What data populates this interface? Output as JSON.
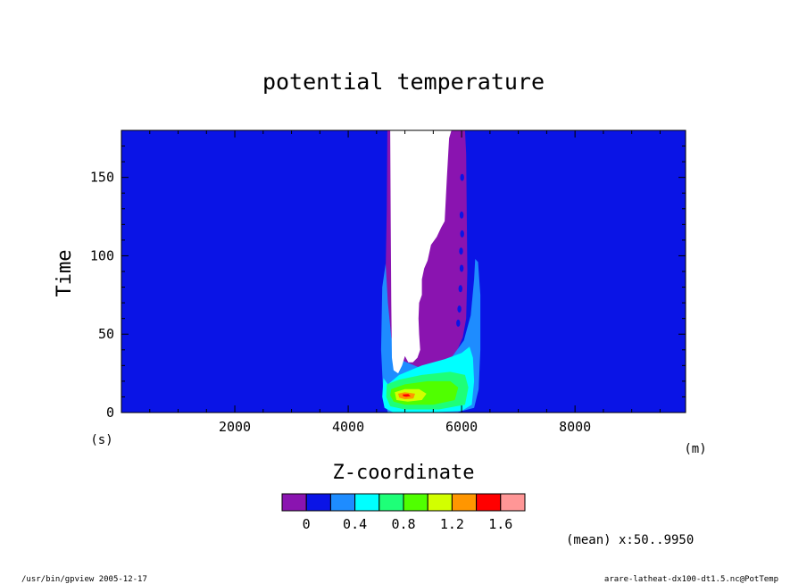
{
  "chart_data": {
    "type": "heatmap",
    "title": "potential temperature",
    "xlabel": "Z-coordinate",
    "ylabel": "Time",
    "x_unit": "(m)",
    "y_unit": "(s)",
    "xlim": [
      0,
      9950
    ],
    "ylim": [
      0,
      180
    ],
    "x_ticks": [
      2000,
      4000,
      6000,
      8000
    ],
    "y_ticks": [
      0,
      50,
      100,
      150
    ],
    "note": "(mean) x:50..9950",
    "colorbar": {
      "levels": [
        -0.4,
        -0.2,
        0,
        0.2,
        0.4,
        0.6,
        0.8,
        1.0,
        1.2,
        1.4,
        1.6,
        1.8
      ],
      "tick_values": [
        "0",
        "0.4",
        "0.8",
        "1.2",
        "1.6"
      ],
      "colors": [
        "#8a14b0",
        "#0a14e6",
        "#1e8cff",
        "#00ffff",
        "#1eff78",
        "#50ff00",
        "#d2ff00",
        "#ff9600",
        "#ff0000",
        "#ff9696"
      ]
    },
    "background_color": "#0a14e6",
    "regions": [
      {
        "name": "purple-plume",
        "color": "#8a14b0",
        "points": [
          [
            4700,
            180
          ],
          [
            6060,
            180
          ],
          [
            6080,
            165
          ],
          [
            6100,
            90
          ],
          [
            6080,
            60
          ],
          [
            6020,
            48
          ],
          [
            5900,
            38
          ],
          [
            5700,
            28
          ],
          [
            5300,
            24
          ],
          [
            4900,
            25
          ],
          [
            4760,
            28
          ],
          [
            4680,
            45
          ],
          [
            4660,
            90
          ],
          [
            4680,
            130
          ],
          [
            4690,
            180
          ]
        ]
      },
      {
        "name": "light-blue-zone",
        "color": "#1e8cff",
        "points": [
          [
            4660,
            95
          ],
          [
            4700,
            70
          ],
          [
            4760,
            48
          ],
          [
            4900,
            34
          ],
          [
            5300,
            28
          ],
          [
            5800,
            34
          ],
          [
            6040,
            46
          ],
          [
            6160,
            62
          ],
          [
            6220,
            85
          ],
          [
            6240,
            98
          ],
          [
            6290,
            96
          ],
          [
            6330,
            75
          ],
          [
            6330,
            40
          ],
          [
            6300,
            15
          ],
          [
            6220,
            3
          ],
          [
            5900,
            0
          ],
          [
            5200,
            0
          ],
          [
            4700,
            0
          ],
          [
            4620,
            10
          ],
          [
            4580,
            40
          ],
          [
            4600,
            80
          ]
        ]
      },
      {
        "name": "cyan-zone",
        "color": "#00ffff",
        "points": [
          [
            4620,
            22
          ],
          [
            4700,
            18
          ],
          [
            4900,
            24
          ],
          [
            5300,
            30
          ],
          [
            5700,
            34
          ],
          [
            6000,
            38
          ],
          [
            6140,
            42
          ],
          [
            6200,
            35
          ],
          [
            6220,
            20
          ],
          [
            6180,
            5
          ],
          [
            6000,
            1
          ],
          [
            5400,
            0
          ],
          [
            4800,
            0
          ],
          [
            4640,
            3
          ],
          [
            4600,
            10
          ]
        ]
      },
      {
        "name": "green-zone",
        "color": "#1eff78",
        "points": [
          [
            4680,
            18
          ],
          [
            4900,
            21
          ],
          [
            5300,
            24
          ],
          [
            5800,
            26
          ],
          [
            6060,
            24
          ],
          [
            6120,
            16
          ],
          [
            6060,
            5
          ],
          [
            5600,
            2
          ],
          [
            5000,
            2
          ],
          [
            4740,
            4
          ],
          [
            4670,
            10
          ]
        ]
      },
      {
        "name": "lime-zone",
        "color": "#50ff00",
        "points": [
          [
            4760,
            15
          ],
          [
            5000,
            18
          ],
          [
            5400,
            20
          ],
          [
            5800,
            20
          ],
          [
            5940,
            16
          ],
          [
            5880,
            8
          ],
          [
            5500,
            5
          ],
          [
            5000,
            5
          ],
          [
            4800,
            7
          ],
          [
            4740,
            11
          ]
        ]
      },
      {
        "name": "yellow-zone",
        "color": "#d2ff00",
        "points": [
          [
            4820,
            13
          ],
          [
            5000,
            15
          ],
          [
            5250,
            15
          ],
          [
            5380,
            12
          ],
          [
            5300,
            8
          ],
          [
            5050,
            7
          ],
          [
            4850,
            8
          ]
        ]
      },
      {
        "name": "orange-zone",
        "color": "#ff9600",
        "points": [
          [
            4880,
            12
          ],
          [
            5000,
            13
          ],
          [
            5180,
            12
          ],
          [
            5150,
            9
          ],
          [
            5000,
            8.5
          ],
          [
            4900,
            9.5
          ]
        ]
      },
      {
        "name": "red-zone",
        "color": "#ff0000",
        "points": [
          [
            4960,
            11.5
          ],
          [
            5060,
            11.8
          ],
          [
            5100,
            10.5
          ],
          [
            5020,
            10
          ],
          [
            4970,
            10.5
          ]
        ]
      },
      {
        "name": "white-core",
        "color": "#ffffff",
        "points": [
          [
            4740,
            180
          ],
          [
            5820,
            180
          ],
          [
            5780,
            175
          ],
          [
            5740,
            150
          ],
          [
            5700,
            122
          ],
          [
            5640,
            118
          ],
          [
            5560,
            112
          ],
          [
            5460,
            107
          ],
          [
            5400,
            97
          ],
          [
            5340,
            92
          ],
          [
            5300,
            85
          ],
          [
            5300,
            75
          ],
          [
            5250,
            70
          ],
          [
            5240,
            60
          ],
          [
            5250,
            50
          ],
          [
            5270,
            40
          ],
          [
            5220,
            35
          ],
          [
            5140,
            32
          ],
          [
            5060,
            32
          ],
          [
            5000,
            36
          ],
          [
            4950,
            30
          ],
          [
            4880,
            25
          ],
          [
            4800,
            27
          ],
          [
            4770,
            35
          ],
          [
            4760,
            70
          ],
          [
            4750,
            120
          ]
        ]
      }
    ],
    "dots": [
      {
        "name": "dot",
        "x": 6010,
        "y": 150
      },
      {
        "name": "dot",
        "x": 6000,
        "y": 126
      },
      {
        "name": "dot",
        "x": 6010,
        "y": 114
      },
      {
        "name": "dot",
        "x": 5990,
        "y": 103
      },
      {
        "name": "dot",
        "x": 6000,
        "y": 92
      },
      {
        "name": "dot",
        "x": 5980,
        "y": 79
      },
      {
        "name": "dot",
        "x": 5960,
        "y": 66
      },
      {
        "name": "dot",
        "x": 5940,
        "y": 57
      }
    ]
  },
  "footer": {
    "left": "/usr/bin/gpview   2005-12-17",
    "right": "arare-latheat-dx100-dt1.5.nc@PotTemp"
  }
}
